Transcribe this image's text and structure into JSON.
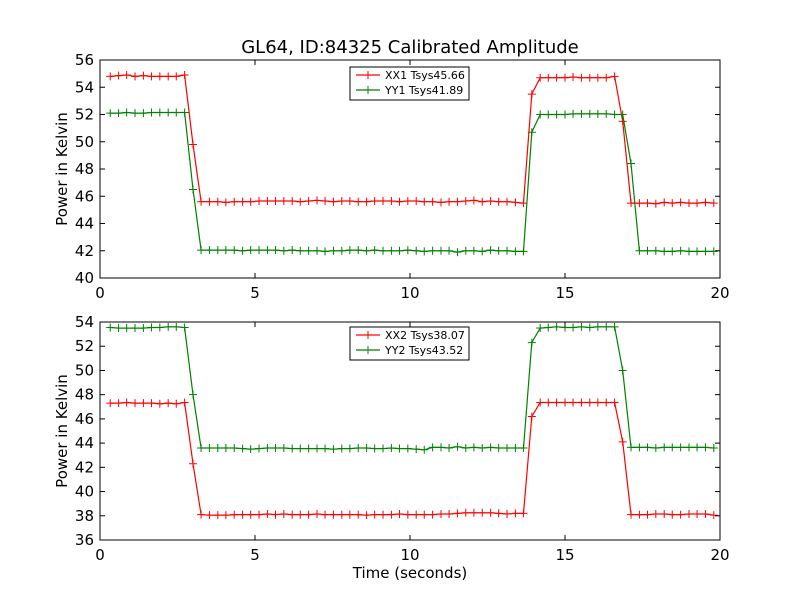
{
  "figure": {
    "title": "GL64, ID:84325 Calibrated Amplitude",
    "xlabel": "Time (seconds)"
  },
  "chart_data": [
    {
      "type": "line",
      "title": "GL64, ID:84325 Calibrated Amplitude",
      "xlabel": "",
      "ylabel": "Power in Kelvin",
      "xlim": [
        0,
        20
      ],
      "ylim": [
        40,
        56
      ],
      "xticks": [
        0,
        5,
        10,
        15,
        20
      ],
      "xtick_labels": [
        "0",
        "5",
        "10",
        "15",
        "20"
      ],
      "yticks": [
        40,
        42,
        44,
        46,
        48,
        50,
        52,
        54,
        56
      ],
      "ytick_labels": [
        "40",
        "42",
        "44",
        "46",
        "48",
        "50",
        "52",
        "54",
        "56"
      ],
      "grid": false,
      "legend_position": "top-center",
      "x": [
        0.33,
        0.6,
        0.86,
        1.13,
        1.4,
        1.66,
        1.93,
        2.2,
        2.46,
        2.73,
        3.0,
        3.26,
        3.53,
        3.8,
        4.06,
        4.33,
        4.6,
        4.86,
        5.13,
        5.4,
        5.66,
        5.93,
        6.2,
        6.46,
        6.73,
        7.0,
        7.26,
        7.53,
        7.8,
        8.06,
        8.33,
        8.6,
        8.86,
        9.13,
        9.4,
        9.66,
        9.93,
        10.2,
        10.46,
        10.73,
        11.0,
        11.26,
        11.53,
        11.8,
        12.06,
        12.33,
        12.6,
        12.86,
        13.13,
        13.4,
        13.66,
        13.93,
        14.2,
        14.46,
        14.73,
        15.0,
        15.26,
        15.53,
        15.8,
        16.06,
        16.33,
        16.6,
        16.86,
        17.13,
        17.4,
        17.66,
        17.93,
        18.2,
        18.46,
        18.73,
        19.0,
        19.26,
        19.53,
        19.8
      ],
      "series": [
        {
          "name": "XX1 Tsys45.66",
          "color": "#ff0000",
          "marker": "+",
          "values": [
            54.8,
            54.85,
            54.9,
            54.8,
            54.85,
            54.8,
            54.8,
            54.8,
            54.8,
            54.9,
            49.8,
            45.6,
            45.6,
            45.6,
            45.55,
            45.6,
            45.6,
            45.6,
            45.65,
            45.65,
            45.65,
            45.65,
            45.65,
            45.6,
            45.65,
            45.7,
            45.65,
            45.6,
            45.65,
            45.65,
            45.6,
            45.6,
            45.65,
            45.65,
            45.65,
            45.6,
            45.65,
            45.65,
            45.6,
            45.6,
            45.55,
            45.6,
            45.6,
            45.65,
            45.7,
            45.6,
            45.65,
            45.6,
            45.6,
            45.55,
            45.5,
            53.5,
            54.7,
            54.7,
            54.7,
            54.7,
            54.75,
            54.7,
            54.7,
            54.7,
            54.7,
            54.8,
            51.5,
            45.5,
            45.5,
            45.5,
            45.45,
            45.55,
            45.5,
            45.55,
            45.5,
            45.5,
            45.55,
            45.5
          ]
        },
        {
          "name": "YY1 Tsys41.89",
          "color": "#008000",
          "marker": "+",
          "values": [
            52.1,
            52.1,
            52.15,
            52.1,
            52.1,
            52.15,
            52.15,
            52.15,
            52.15,
            52.15,
            46.5,
            42.05,
            42.05,
            42.05,
            42.05,
            42.05,
            42.0,
            42.05,
            42.05,
            42.05,
            42.05,
            42.0,
            42.05,
            42.0,
            42.0,
            42.0,
            41.95,
            42.0,
            42.0,
            42.05,
            42.05,
            42.0,
            42.05,
            42.0,
            42.0,
            42.0,
            42.05,
            42.0,
            41.95,
            42.0,
            42.0,
            42.0,
            41.9,
            42.0,
            42.0,
            41.95,
            42.05,
            42.0,
            42.0,
            41.95,
            41.95,
            50.7,
            52.0,
            52.0,
            52.0,
            52.0,
            52.05,
            52.05,
            52.05,
            52.05,
            52.05,
            52.0,
            52.0,
            48.4,
            42.0,
            42.0,
            42.0,
            41.95,
            41.95,
            42.0,
            41.95,
            41.95,
            41.95,
            41.95
          ]
        }
      ]
    },
    {
      "type": "line",
      "title": "",
      "xlabel": "Time (seconds)",
      "ylabel": "Power in Kelvin",
      "xlim": [
        0,
        20
      ],
      "ylim": [
        36,
        54
      ],
      "xticks": [
        0,
        5,
        10,
        15,
        20
      ],
      "xtick_labels": [
        "0",
        "5",
        "10",
        "15",
        "20"
      ],
      "yticks": [
        36,
        38,
        40,
        42,
        44,
        46,
        48,
        50,
        52,
        54
      ],
      "ytick_labels": [
        "36",
        "38",
        "40",
        "42",
        "44",
        "46",
        "48",
        "50",
        "52",
        "54"
      ],
      "grid": false,
      "legend_position": "top-center",
      "x": [
        0.33,
        0.6,
        0.86,
        1.13,
        1.4,
        1.66,
        1.93,
        2.2,
        2.46,
        2.73,
        3.0,
        3.26,
        3.53,
        3.8,
        4.06,
        4.33,
        4.6,
        4.86,
        5.13,
        5.4,
        5.66,
        5.93,
        6.2,
        6.46,
        6.73,
        7.0,
        7.26,
        7.53,
        7.8,
        8.06,
        8.33,
        8.6,
        8.86,
        9.13,
        9.4,
        9.66,
        9.93,
        10.2,
        10.46,
        10.73,
        11.0,
        11.26,
        11.53,
        11.8,
        12.06,
        12.33,
        12.6,
        12.86,
        13.13,
        13.4,
        13.66,
        13.93,
        14.2,
        14.46,
        14.73,
        15.0,
        15.26,
        15.53,
        15.8,
        16.06,
        16.33,
        16.6,
        16.86,
        17.13,
        17.4,
        17.66,
        17.93,
        18.2,
        18.46,
        18.73,
        19.0,
        19.26,
        19.53,
        19.8
      ],
      "series": [
        {
          "name": "XX2 Tsys38.07",
          "color": "#ff0000",
          "marker": "+",
          "values": [
            47.3,
            47.3,
            47.35,
            47.3,
            47.3,
            47.3,
            47.25,
            47.3,
            47.25,
            47.35,
            42.3,
            38.1,
            38.05,
            38.05,
            38.05,
            38.1,
            38.1,
            38.1,
            38.1,
            38.15,
            38.1,
            38.15,
            38.1,
            38.1,
            38.1,
            38.15,
            38.1,
            38.1,
            38.1,
            38.1,
            38.1,
            38.05,
            38.1,
            38.1,
            38.1,
            38.15,
            38.1,
            38.1,
            38.1,
            38.1,
            38.15,
            38.15,
            38.2,
            38.25,
            38.25,
            38.25,
            38.25,
            38.2,
            38.15,
            38.2,
            38.2,
            46.2,
            47.35,
            47.35,
            47.35,
            47.35,
            47.35,
            47.35,
            47.35,
            47.35,
            47.35,
            47.35,
            44.1,
            38.1,
            38.1,
            38.1,
            38.15,
            38.15,
            38.1,
            38.1,
            38.15,
            38.15,
            38.15,
            38.05
          ]
        },
        {
          "name": "YY2 Tsys43.52",
          "color": "#008000",
          "marker": "+",
          "values": [
            53.55,
            53.5,
            53.5,
            53.5,
            53.5,
            53.55,
            53.55,
            53.6,
            53.6,
            53.55,
            48.0,
            43.6,
            43.6,
            43.6,
            43.6,
            43.6,
            43.55,
            43.5,
            43.55,
            43.6,
            43.6,
            43.6,
            43.55,
            43.55,
            43.55,
            43.55,
            43.55,
            43.5,
            43.55,
            43.55,
            43.6,
            43.6,
            43.55,
            43.55,
            43.6,
            43.55,
            43.55,
            43.5,
            43.45,
            43.65,
            43.65,
            43.6,
            43.7,
            43.6,
            43.65,
            43.6,
            43.65,
            43.6,
            43.6,
            43.6,
            43.6,
            52.3,
            53.5,
            53.55,
            53.6,
            53.55,
            53.55,
            53.6,
            53.55,
            53.6,
            53.6,
            53.6,
            50.0,
            43.65,
            43.65,
            43.65,
            43.6,
            43.65,
            43.65,
            43.65,
            43.65,
            43.65,
            43.65,
            43.6
          ]
        }
      ]
    }
  ]
}
